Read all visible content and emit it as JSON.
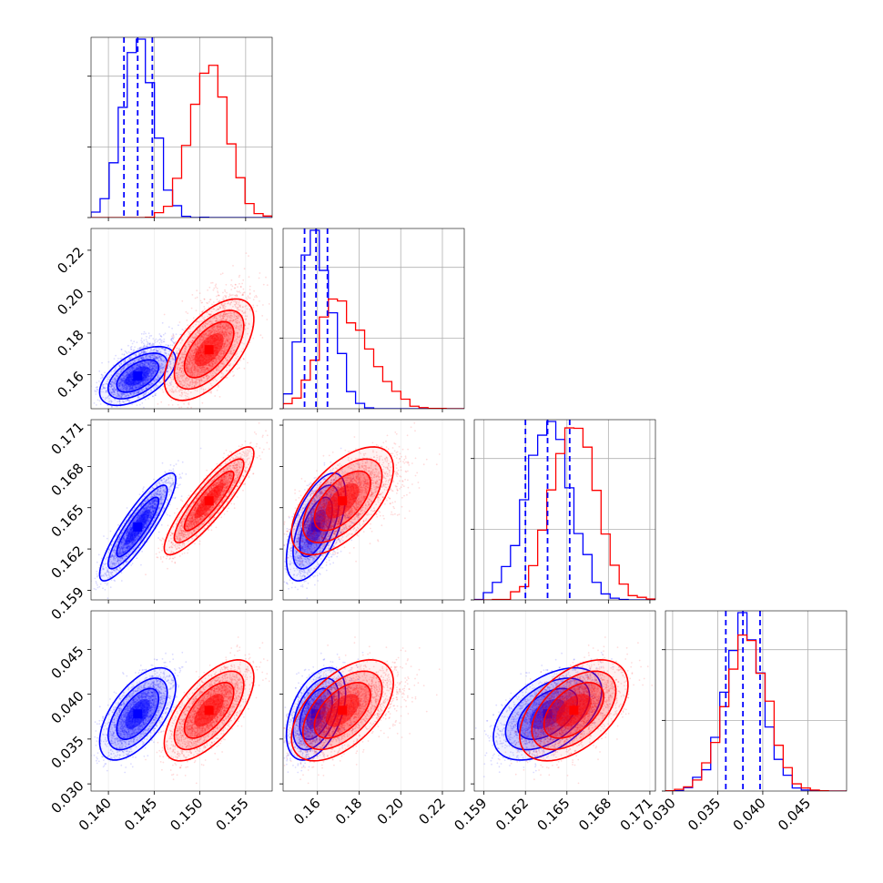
{
  "chart_data": {
    "type": "corner",
    "parameters": [
      {
        "ticks": [
          0.14,
          0.145,
          0.15,
          0.155
        ],
        "tick_labels": [
          "0.140",
          "0.145",
          "0.150",
          "0.155"
        ],
        "range": [
          0.1381,
          0.1579
        ],
        "tick_rotation": 45
      },
      {
        "ticks": [
          0.16,
          0.18,
          0.2,
          0.22
        ],
        "tick_labels": [
          "0.16",
          "0.18",
          "0.20",
          "0.22"
        ],
        "range": [
          0.1435,
          0.2305
        ],
        "tick_rotation": 45
      },
      {
        "ticks": [
          0.159,
          0.162,
          0.165,
          0.168,
          0.171
        ],
        "tick_labels": [
          "0.159",
          "0.162",
          "0.165",
          "0.168",
          "0.171"
        ],
        "range": [
          0.1583,
          0.1714
        ],
        "tick_rotation": 45
      },
      {
        "ticks": [
          0.03,
          0.035,
          0.04,
          0.045
        ],
        "tick_labels": [
          "0.030",
          "0.035",
          "0.040",
          "0.045"
        ],
        "range": [
          0.0292,
          0.0493
        ],
        "tick_rotation": 45
      }
    ],
    "series": [
      {
        "color": "#0000ff",
        "mean": [
          0.1432,
          0.1593,
          0.1636,
          0.0378
        ],
        "sd": [
          0.0017,
          0.0058,
          0.0016,
          0.0021
        ],
        "corr": [
          [
            1.0,
            0.55,
            0.88,
            0.6
          ],
          [
            0.55,
            1.0,
            0.6,
            0.45
          ],
          [
            0.88,
            0.6,
            1.0,
            0.5
          ],
          [
            0.6,
            0.45,
            0.5,
            1.0
          ]
        ],
        "quantile_lines": [
          [
            0.1417,
            0.1432,
            0.1448
          ],
          [
            0.1538,
            0.1593,
            0.1648
          ],
          [
            0.162,
            0.1636,
            0.1652
          ],
          [
            0.0359,
            0.0378,
            0.0397
          ]
        ]
      },
      {
        "color": "#ff0000",
        "mean": [
          0.151,
          0.172,
          0.1655,
          0.0382
        ],
        "sd": [
          0.002,
          0.01,
          0.0016,
          0.0023
        ],
        "corr": [
          [
            1.0,
            0.6,
            0.88,
            0.65
          ],
          [
            0.6,
            1.0,
            0.6,
            0.55
          ],
          [
            0.88,
            0.6,
            1.0,
            0.5
          ],
          [
            0.65,
            0.55,
            0.5,
            1.0
          ]
        ],
        "quantile_lines": []
      }
    ],
    "grid": true,
    "legend": "none"
  },
  "colors": {
    "blue": "#0000ff",
    "red": "#ff0000",
    "grid": "#b0b0b0"
  }
}
